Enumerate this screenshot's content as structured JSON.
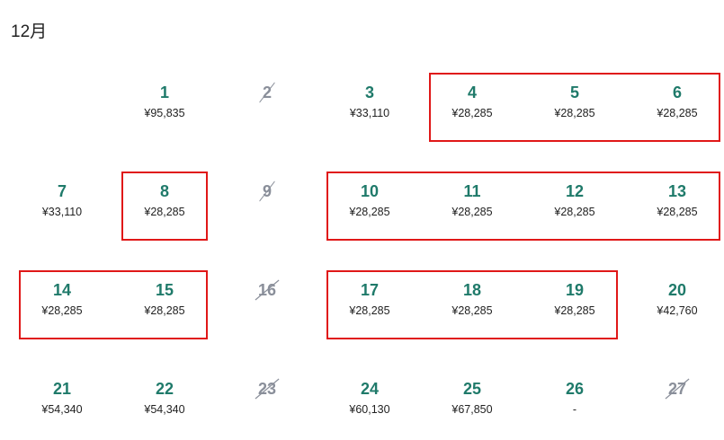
{
  "calendar": {
    "month_label": "12月",
    "weeks": [
      [
        {
          "day": "",
          "price": "",
          "available": false,
          "blank": true
        },
        {
          "day": "1",
          "price": "¥95,835",
          "available": true
        },
        {
          "day": "2",
          "price": "",
          "available": false
        },
        {
          "day": "3",
          "price": "¥33,110",
          "available": true
        },
        {
          "day": "4",
          "price": "¥28,285",
          "available": true
        },
        {
          "day": "5",
          "price": "¥28,285",
          "available": true
        },
        {
          "day": "6",
          "price": "¥28,285",
          "available": true
        }
      ],
      [
        {
          "day": "7",
          "price": "¥33,110",
          "available": true
        },
        {
          "day": "8",
          "price": "¥28,285",
          "available": true
        },
        {
          "day": "9",
          "price": "",
          "available": false
        },
        {
          "day": "10",
          "price": "¥28,285",
          "available": true
        },
        {
          "day": "11",
          "price": "¥28,285",
          "available": true
        },
        {
          "day": "12",
          "price": "¥28,285",
          "available": true
        },
        {
          "day": "13",
          "price": "¥28,285",
          "available": true
        }
      ],
      [
        {
          "day": "14",
          "price": "¥28,285",
          "available": true
        },
        {
          "day": "15",
          "price": "¥28,285",
          "available": true
        },
        {
          "day": "16",
          "price": "",
          "available": false
        },
        {
          "day": "17",
          "price": "¥28,285",
          "available": true
        },
        {
          "day": "18",
          "price": "¥28,285",
          "available": true
        },
        {
          "day": "19",
          "price": "¥28,285",
          "available": true
        },
        {
          "day": "20",
          "price": "¥42,760",
          "available": true
        }
      ],
      [
        {
          "day": "21",
          "price": "¥54,340",
          "available": true
        },
        {
          "day": "22",
          "price": "¥54,340",
          "available": true
        },
        {
          "day": "23",
          "price": "",
          "available": false
        },
        {
          "day": "24",
          "price": "¥60,130",
          "available": true
        },
        {
          "day": "25",
          "price": "¥67,850",
          "available": true
        },
        {
          "day": "26",
          "price": "-",
          "available": true
        },
        {
          "day": "27",
          "price": "",
          "available": false
        }
      ]
    ],
    "highlighted_ranges": [
      {
        "week": 0,
        "from": 4,
        "to": 6
      },
      {
        "week": 1,
        "from": 1,
        "to": 1
      },
      {
        "week": 1,
        "from": 3,
        "to": 6
      },
      {
        "week": 2,
        "from": 0,
        "to": 1
      },
      {
        "week": 2,
        "from": 3,
        "to": 5
      }
    ],
    "colors": {
      "day_available": "#1f7a6a",
      "day_unavailable": "#8a8f9a",
      "highlight_border": "#e01818"
    }
  }
}
